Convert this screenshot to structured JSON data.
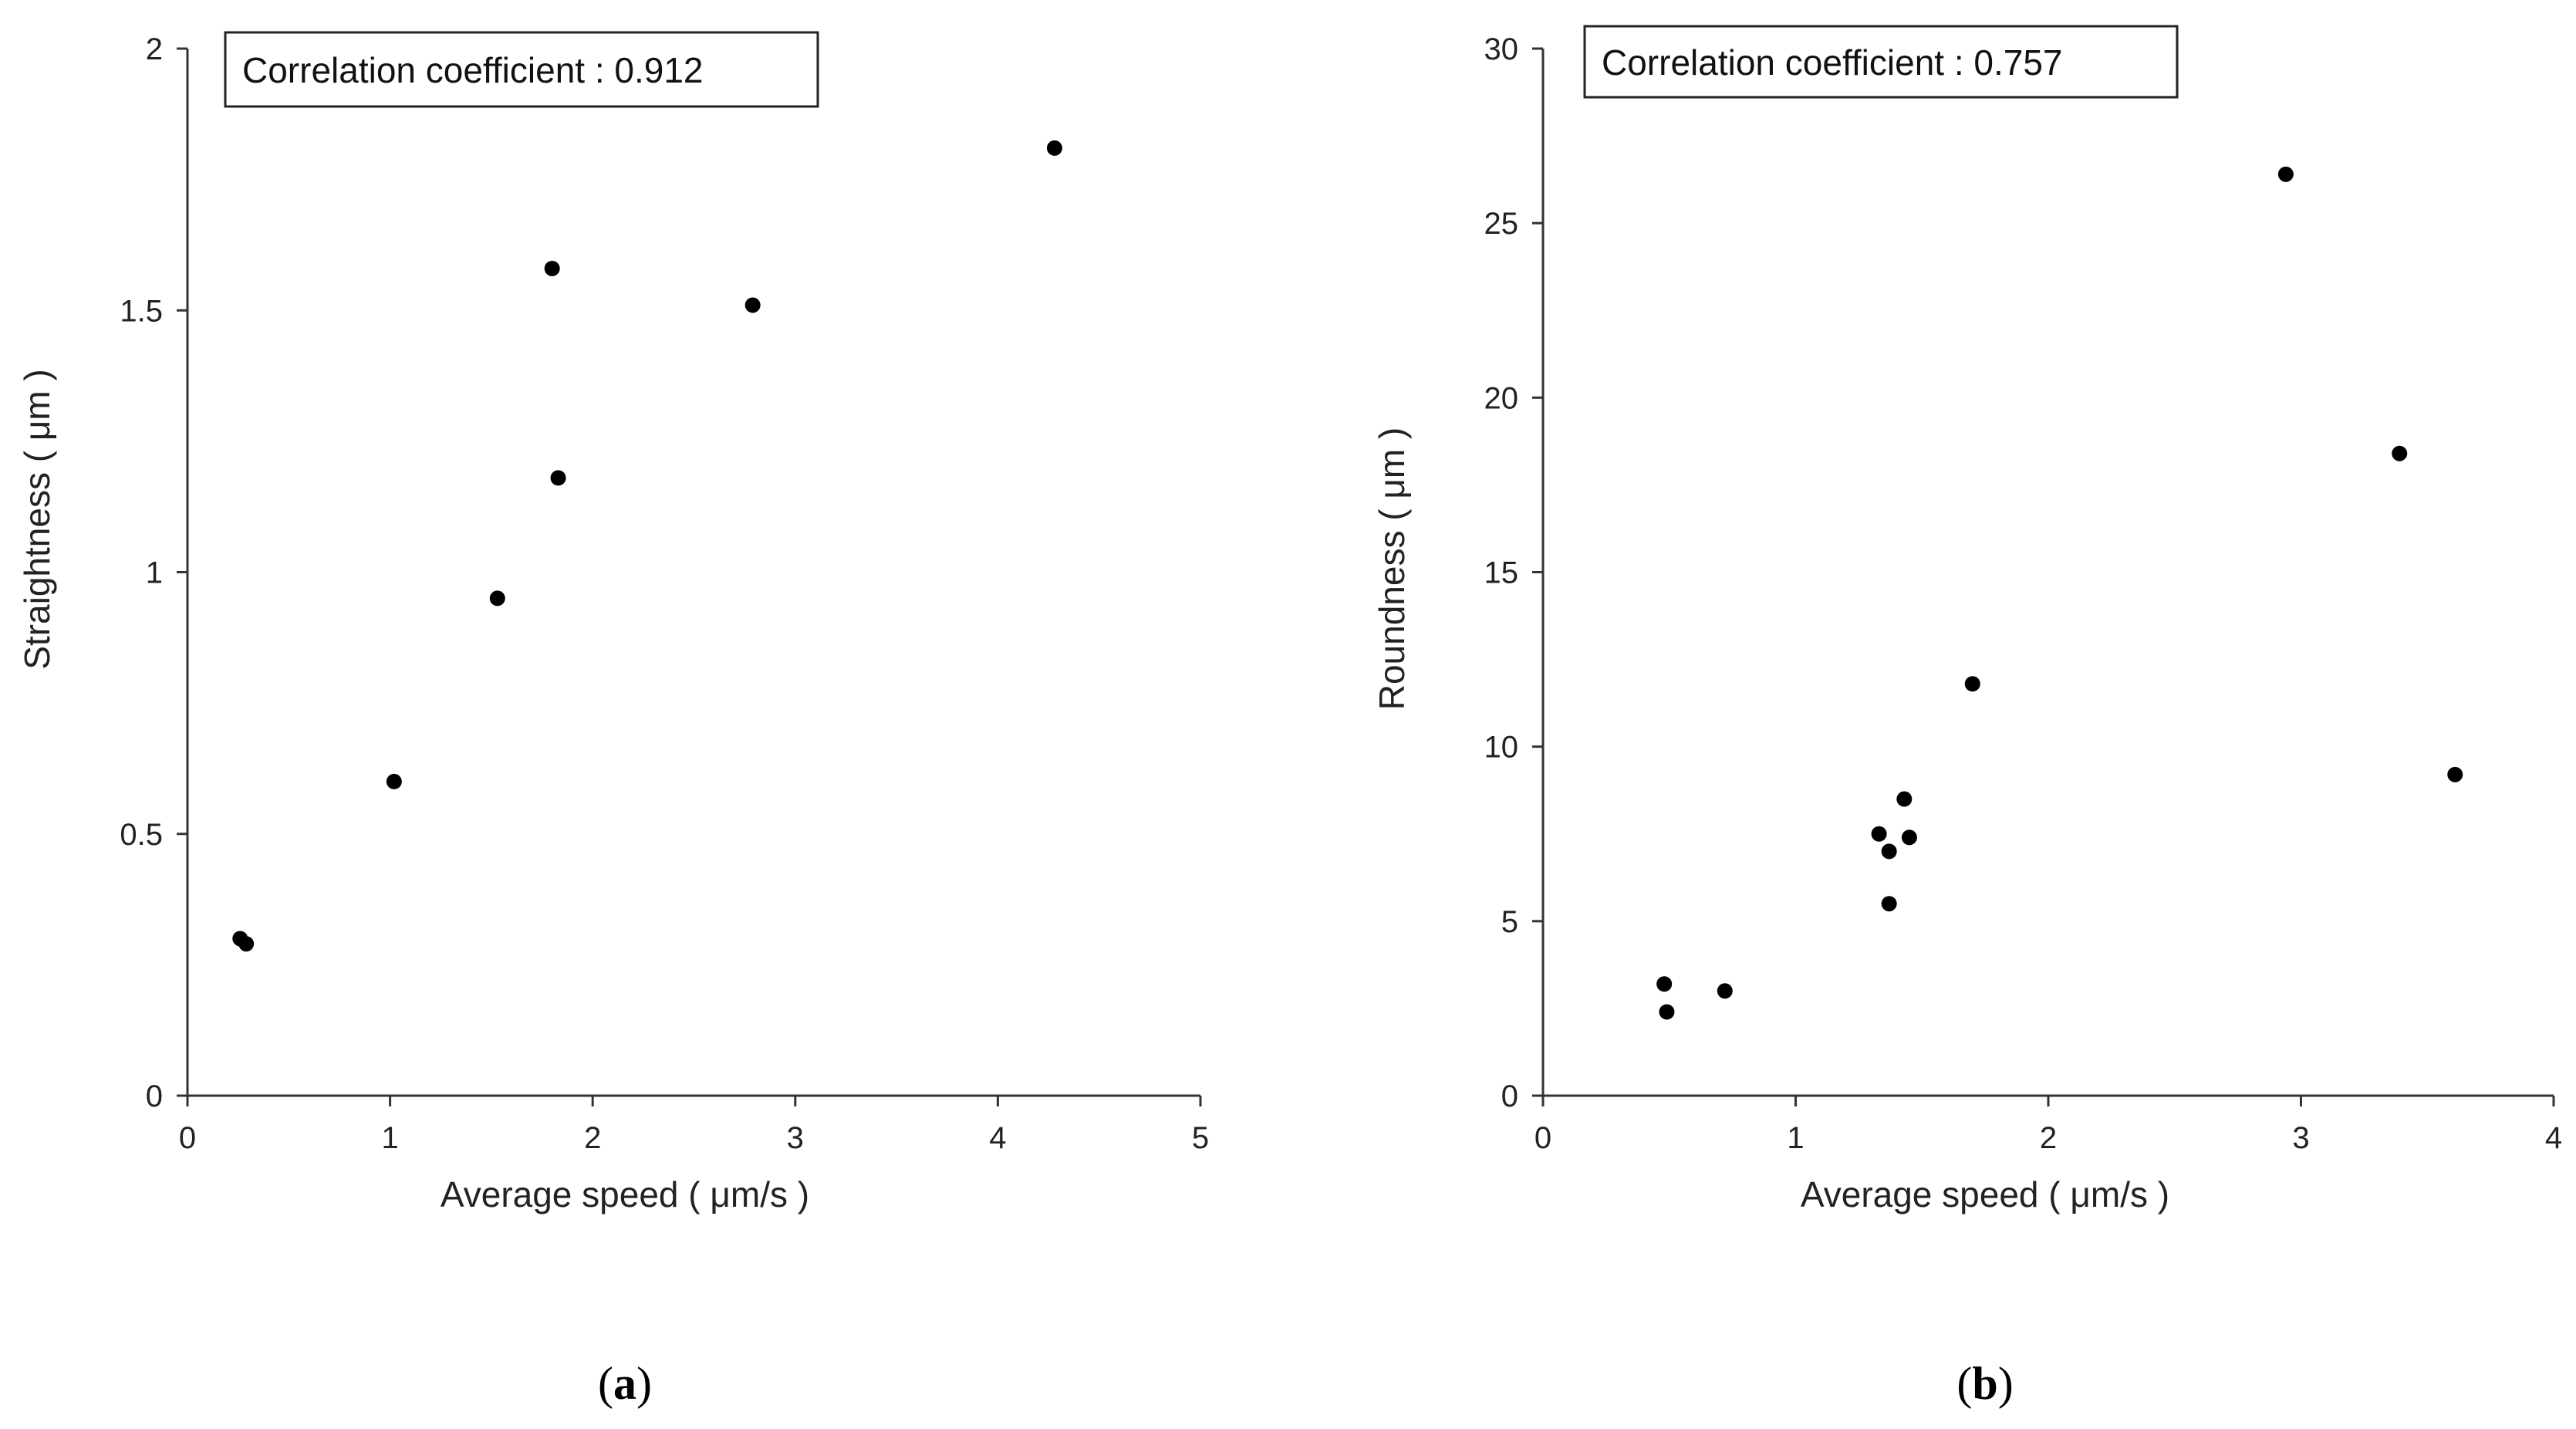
{
  "chart_data": [
    {
      "type": "scatter",
      "annotation": "Correlation coefficient : 0.912",
      "xlabel": "Average speed ( μm/s )",
      "ylabel": "Straightness ( μm )",
      "xlim": [
        0,
        5
      ],
      "ylim": [
        0,
        2
      ],
      "xticks": [
        0,
        1,
        2,
        3,
        4,
        5
      ],
      "yticks": [
        0,
        0.5,
        1,
        1.5,
        2
      ],
      "xtick_labels": [
        "0",
        "1",
        "2",
        "3",
        "4",
        "5"
      ],
      "ytick_labels": [
        "0",
        "0.5",
        "1",
        "1.5",
        "2"
      ],
      "points": [
        {
          "x": 0.26,
          "y": 0.3
        },
        {
          "x": 0.29,
          "y": 0.29
        },
        {
          "x": 1.02,
          "y": 0.6
        },
        {
          "x": 1.53,
          "y": 0.95
        },
        {
          "x": 1.8,
          "y": 1.58
        },
        {
          "x": 1.83,
          "y": 1.18
        },
        {
          "x": 2.79,
          "y": 1.51
        },
        {
          "x": 4.28,
          "y": 1.81
        }
      ],
      "panel_label": {
        "open": "(",
        "letter": "a",
        "close": ")"
      }
    },
    {
      "type": "scatter",
      "annotation": "Correlation coefficient : 0.757",
      "xlabel": "Average speed ( μm/s )",
      "ylabel": "Roundness ( μm )",
      "xlim": [
        0,
        4
      ],
      "ylim": [
        0,
        30
      ],
      "xticks": [
        0,
        1,
        2,
        3,
        4
      ],
      "yticks": [
        0,
        5,
        10,
        15,
        20,
        25,
        30
      ],
      "xtick_labels": [
        "0",
        "1",
        "2",
        "3",
        "4"
      ],
      "ytick_labels": [
        "0",
        "5",
        "10",
        "15",
        "20",
        "25",
        "30"
      ],
      "points": [
        {
          "x": 0.48,
          "y": 3.2
        },
        {
          "x": 0.49,
          "y": 2.4
        },
        {
          "x": 0.72,
          "y": 3.0
        },
        {
          "x": 1.33,
          "y": 7.5
        },
        {
          "x": 1.37,
          "y": 7.0
        },
        {
          "x": 1.37,
          "y": 5.5
        },
        {
          "x": 1.43,
          "y": 8.5
        },
        {
          "x": 1.45,
          "y": 7.4
        },
        {
          "x": 1.7,
          "y": 11.8
        },
        {
          "x": 2.94,
          "y": 26.4
        },
        {
          "x": 3.39,
          "y": 18.4
        },
        {
          "x": 3.61,
          "y": 9.2
        }
      ],
      "panel_label": {
        "open": "(",
        "letter": "b",
        "close": ")"
      }
    }
  ]
}
